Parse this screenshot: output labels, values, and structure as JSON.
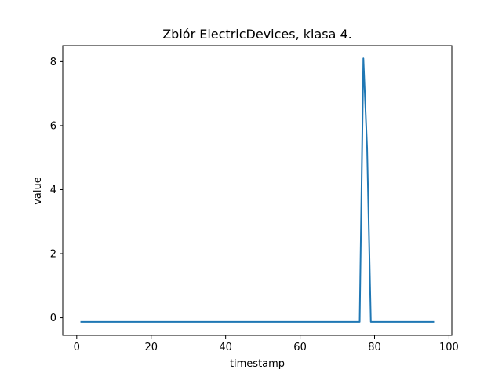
{
  "chart_data": {
    "type": "line",
    "title": "Zbiór ElectricDevices, klasa 4.",
    "xlabel": "timestamp",
    "ylabel": "value",
    "xlim": [
      -3.75,
      100.75
    ],
    "ylim": [
      -0.55,
      8.5
    ],
    "xticks": [
      0,
      20,
      40,
      60,
      80,
      100
    ],
    "yticks": [
      0,
      2,
      4,
      6,
      8
    ],
    "grid": false,
    "series": [
      {
        "color": "#1f77b4",
        "x": [
          1,
          76,
          77,
          78,
          79,
          96
        ],
        "y": [
          -0.13,
          -0.13,
          8.1,
          5.3,
          -0.13,
          -0.13
        ]
      }
    ]
  }
}
